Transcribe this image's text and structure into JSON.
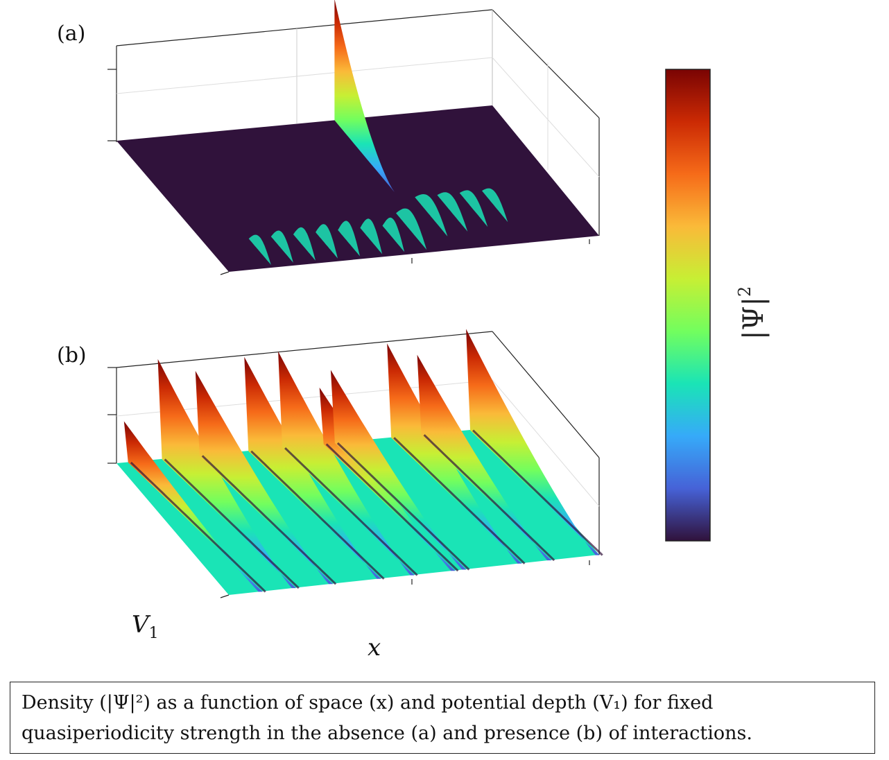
{
  "chart_data": [
    {
      "type": "surface",
      "panel_label": "(a)",
      "xlabel": "x",
      "ylabel": "V",
      "ylabel_sub": "1",
      "description_text": "",
      "x": [
        0,
        0.1,
        0.2,
        0.3,
        0.4,
        0.5,
        0.6,
        0.7,
        0.8,
        0.9,
        1.0
      ],
      "ridges": [
        {
          "x": 0.58,
          "v_start": 0.0,
          "v_end": 0.55,
          "height": 1.0
        },
        {
          "x": 0.12,
          "v_start": 0.78,
          "v_end": 0.98,
          "height": 0.12
        },
        {
          "x": 0.18,
          "v_start": 0.78,
          "v_end": 0.98,
          "height": 0.14
        },
        {
          "x": 0.24,
          "v_start": 0.78,
          "v_end": 0.98,
          "height": 0.15
        },
        {
          "x": 0.3,
          "v_start": 0.78,
          "v_end": 0.98,
          "height": 0.16
        },
        {
          "x": 0.36,
          "v_start": 0.78,
          "v_end": 0.98,
          "height": 0.17
        },
        {
          "x": 0.42,
          "v_start": 0.78,
          "v_end": 0.98,
          "height": 0.17
        },
        {
          "x": 0.48,
          "v_start": 0.78,
          "v_end": 0.98,
          "height": 0.16
        },
        {
          "x": 0.54,
          "v_start": 0.7,
          "v_end": 0.98,
          "height": 0.16
        },
        {
          "x": 0.62,
          "v_start": 0.6,
          "v_end": 0.9,
          "height": 0.15
        },
        {
          "x": 0.68,
          "v_start": 0.6,
          "v_end": 0.88,
          "height": 0.14
        },
        {
          "x": 0.74,
          "v_start": 0.6,
          "v_end": 0.86,
          "height": 0.13
        },
        {
          "x": 0.8,
          "v_start": 0.6,
          "v_end": 0.84,
          "height": 0.12
        }
      ]
    },
    {
      "type": "surface",
      "panel_label": "(b)",
      "xlabel": "x",
      "ylabel": "V",
      "ylabel_sub": "1",
      "ridges": [
        {
          "x": 0.02,
          "height": 0.35
        },
        {
          "x": 0.11,
          "height": 0.85
        },
        {
          "x": 0.21,
          "height": 0.72
        },
        {
          "x": 0.34,
          "height": 0.8
        },
        {
          "x": 0.43,
          "height": 0.82
        },
        {
          "x": 0.54,
          "height": 0.48
        },
        {
          "x": 0.57,
          "height": 0.62
        },
        {
          "x": 0.72,
          "height": 0.8
        },
        {
          "x": 0.8,
          "height": 0.68
        },
        {
          "x": 0.93,
          "height": 0.86
        }
      ]
    }
  ],
  "colorbar": {
    "label": "|Ψ|",
    "label_sup": "2",
    "colormap": "turbo",
    "colors": [
      "#30123b",
      "#4662d7",
      "#36aaf9",
      "#1ae4b6",
      "#72fe5e",
      "#c7ef34",
      "#faba39",
      "#f66b19",
      "#cb2a04",
      "#7a0403"
    ]
  },
  "caption": {
    "line1": "Density (|Ψ|²) as a function of space (x) and potential depth (V₁) for fixed",
    "line2": "quasiperiodicity strength in the absence (a) and presence (b) of interactions."
  }
}
